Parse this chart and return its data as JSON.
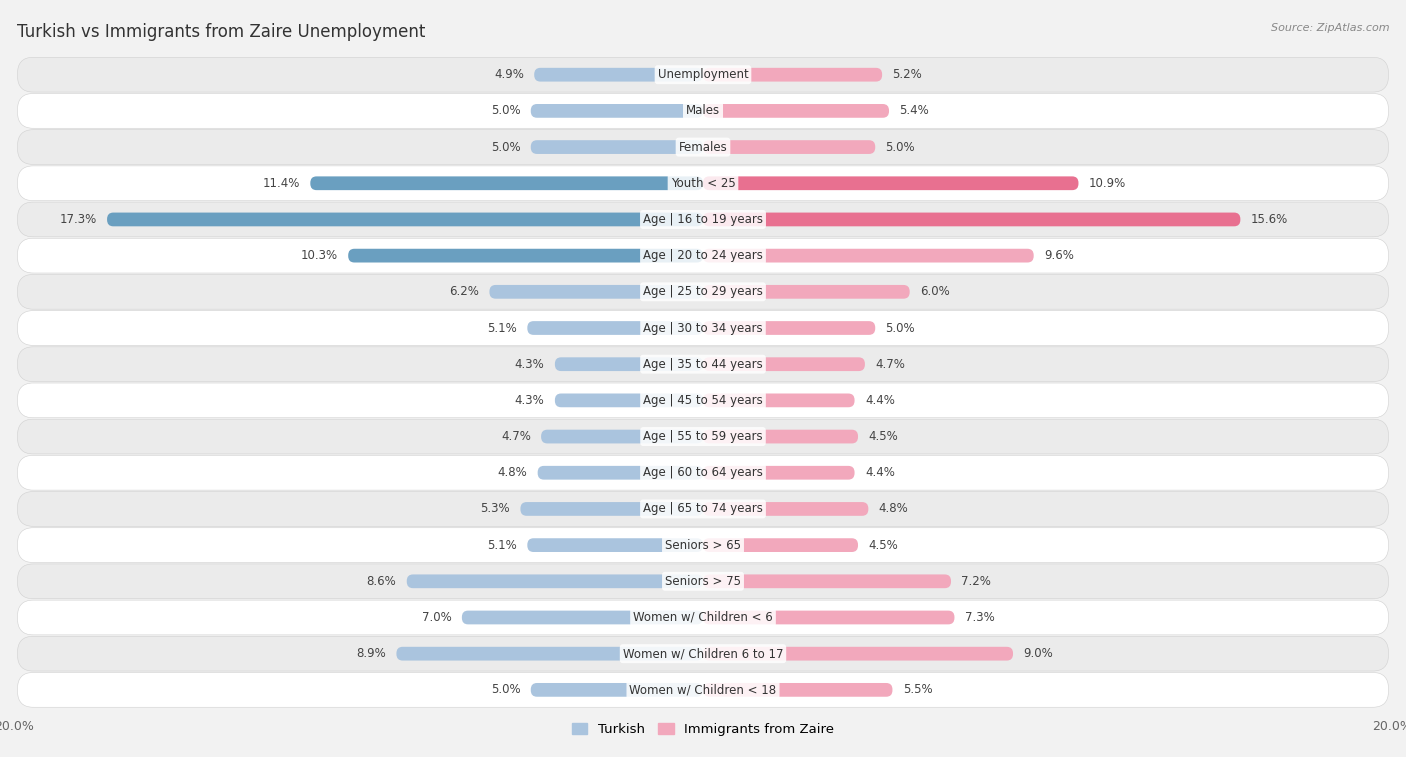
{
  "title": "Turkish vs Immigrants from Zaire Unemployment",
  "source": "Source: ZipAtlas.com",
  "categories": [
    "Unemployment",
    "Males",
    "Females",
    "Youth < 25",
    "Age | 16 to 19 years",
    "Age | 20 to 24 years",
    "Age | 25 to 29 years",
    "Age | 30 to 34 years",
    "Age | 35 to 44 years",
    "Age | 45 to 54 years",
    "Age | 55 to 59 years",
    "Age | 60 to 64 years",
    "Age | 65 to 74 years",
    "Seniors > 65",
    "Seniors > 75",
    "Women w/ Children < 6",
    "Women w/ Children 6 to 17",
    "Women w/ Children < 18"
  ],
  "turkish": [
    4.9,
    5.0,
    5.0,
    11.4,
    17.3,
    10.3,
    6.2,
    5.1,
    4.3,
    4.3,
    4.7,
    4.8,
    5.3,
    5.1,
    8.6,
    7.0,
    8.9,
    5.0
  ],
  "zaire": [
    5.2,
    5.4,
    5.0,
    10.9,
    15.6,
    9.6,
    6.0,
    5.0,
    4.7,
    4.4,
    4.5,
    4.4,
    4.8,
    4.5,
    7.2,
    7.3,
    9.0,
    5.5
  ],
  "turkish_color": "#aac4de",
  "zaire_color": "#f2a8bc",
  "turkish_highlight_color": "#6a9fc0",
  "zaire_highlight_color": "#e87090",
  "bg_color": "#f2f2f2",
  "row_bg_white": "#ffffff",
  "row_bg_light": "#ebebeb",
  "bar_height": 0.38,
  "xlim": 20.0,
  "legend_turkish": "Turkish",
  "legend_zaire": "Immigrants from Zaire",
  "highlight_threshold": 10.0
}
